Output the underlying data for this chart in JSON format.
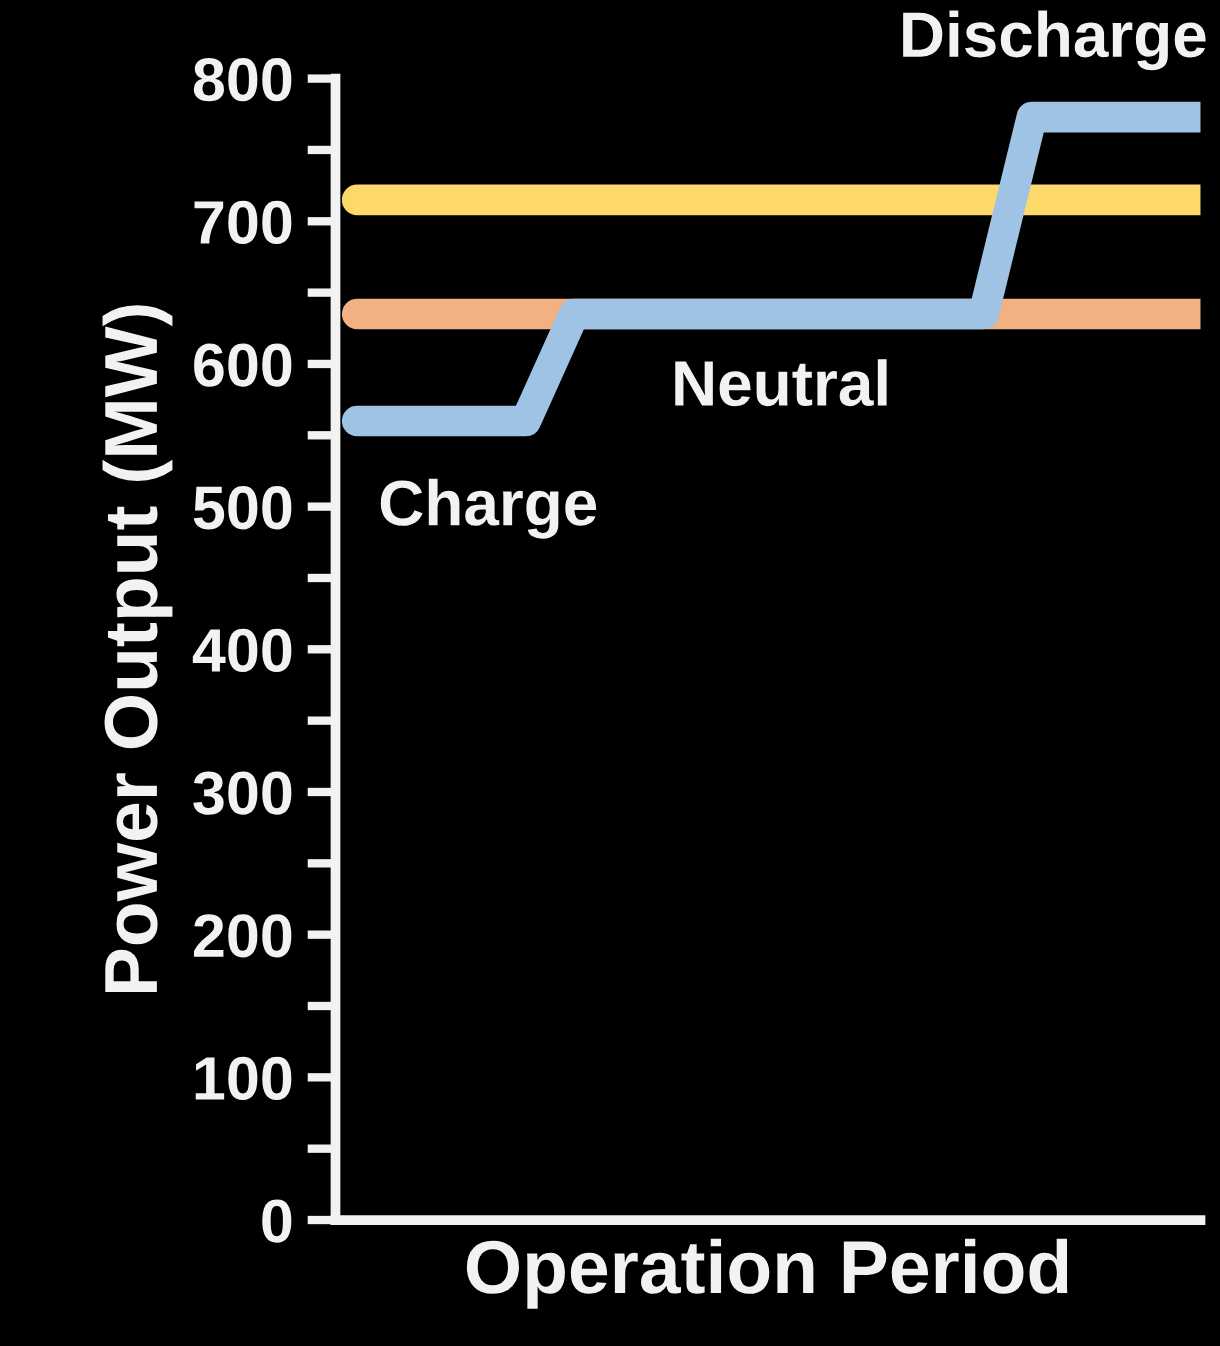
{
  "chart_data": {
    "type": "line",
    "ylabel": "Power Output (MW)",
    "xlabel": "Operation Period",
    "categories": [
      null,
      null,
      null,
      null,
      null,
      null,
      null,
      null,
      null,
      null,
      null,
      null,
      null,
      null,
      null,
      null,
      null,
      null,
      null,
      null,
      null,
      null,
      null,
      null,
      null,
      null,
      null,
      null,
      null,
      null,
      null,
      null,
      null,
      null,
      null,
      null
    ],
    "series": [
      {
        "color": "#fdd86a",
        "values": [
          715,
          715,
          715,
          715,
          715,
          715,
          715,
          715,
          715,
          715,
          715,
          715,
          715,
          715,
          715,
          715,
          715,
          715,
          715,
          715,
          715,
          715,
          715,
          715,
          715,
          715,
          715,
          715,
          715,
          715,
          715,
          715,
          715,
          715,
          715,
          715
        ]
      },
      {
        "color": "#f2b183",
        "values": [
          635,
          635,
          635,
          635,
          635,
          635,
          635,
          635,
          635,
          635,
          635,
          635,
          635,
          635,
          635,
          635,
          635,
          635,
          635,
          635,
          635,
          635,
          635,
          635,
          635,
          635,
          635,
          635,
          635,
          635,
          635,
          635,
          635,
          635,
          635,
          635
        ]
      },
      {
        "color": "#9fc3e5",
        "values": [
          560,
          560,
          560,
          560,
          560,
          560,
          560,
          560,
          null,
          635,
          635,
          635,
          635,
          635,
          635,
          635,
          635,
          635,
          635,
          635,
          635,
          635,
          635,
          635,
          635,
          635,
          635,
          null,
          773,
          773,
          773,
          773,
          773,
          773,
          773,
          773
        ]
      }
    ],
    "ylim": [
      0,
      800
    ],
    "yticks": [
      0,
      100,
      200,
      300,
      400,
      500,
      600,
      700,
      800
    ],
    "tick_labels": "y",
    "grid": false,
    "legend": false,
    "line_style": "solid",
    "marker": "none",
    "annotations": [
      "Charge",
      "Neutral",
      "Discharge"
    ]
  }
}
